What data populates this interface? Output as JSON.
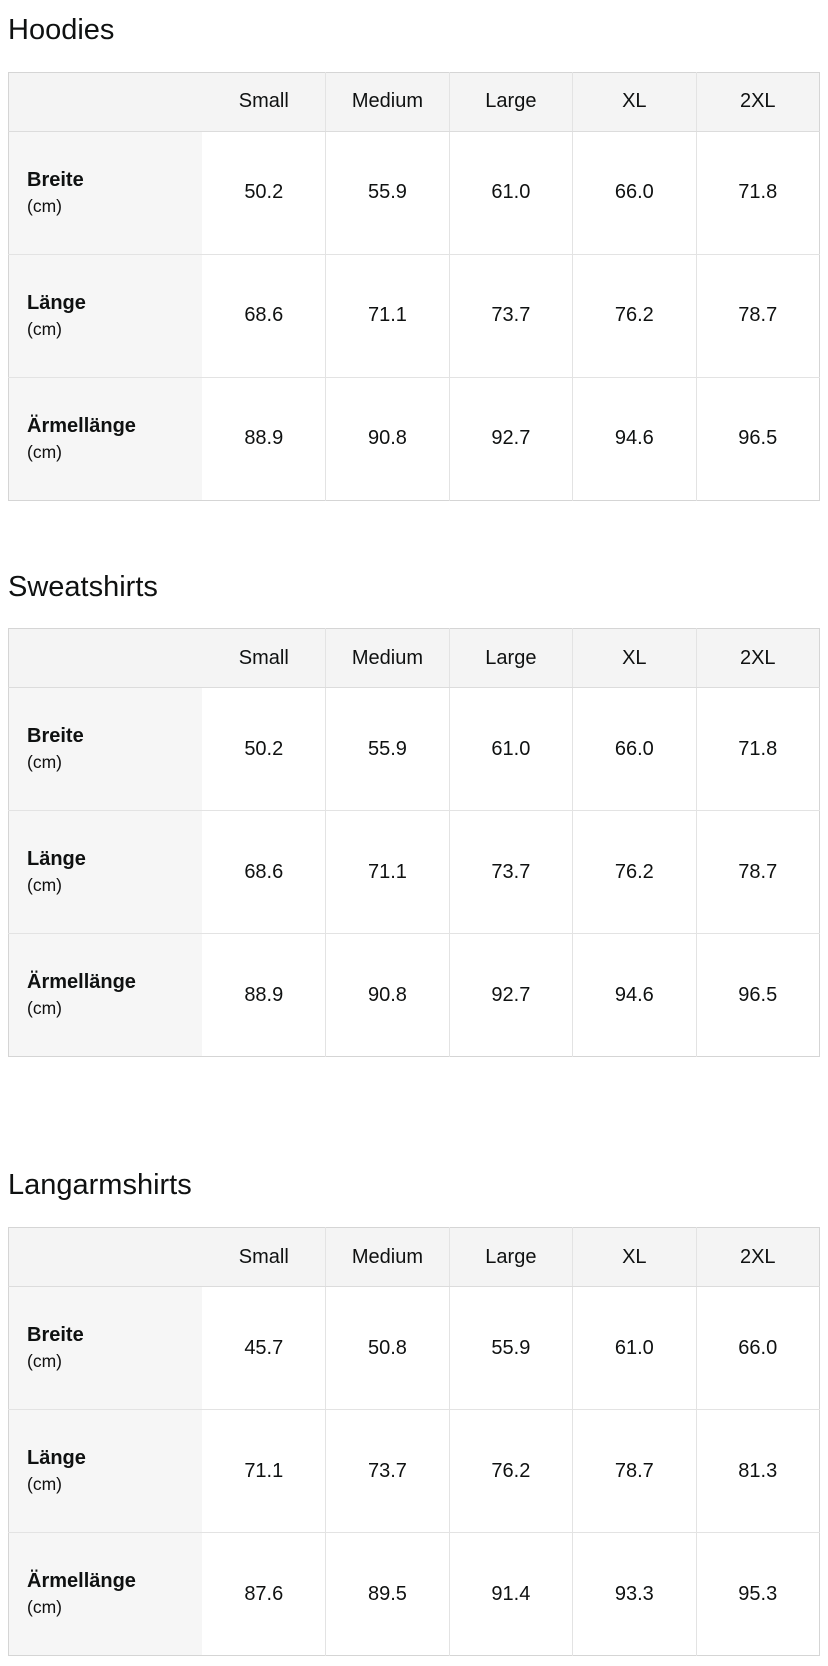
{
  "colors": {
    "header_background": "#f4f4f4",
    "label_column_background": "#f6f6f6",
    "table_border": "#d5d5d5",
    "cell_border": "#e3e3e3",
    "text": "#0f1111"
  },
  "sections": [
    {
      "title": "Hoodies",
      "columns": [
        "Small",
        "Medium",
        "Large",
        "XL",
        "2XL"
      ],
      "rows": [
        {
          "label": "Breite",
          "unit": "(cm)",
          "values": [
            "50.2",
            "55.9",
            "61.0",
            "66.0",
            "71.8"
          ]
        },
        {
          "label": "Länge",
          "unit": "(cm)",
          "values": [
            "68.6",
            "71.1",
            "73.7",
            "76.2",
            "78.7"
          ]
        },
        {
          "label": "Ärmellänge",
          "unit": "(cm)",
          "values": [
            "88.9",
            "90.8",
            "92.7",
            "94.6",
            "96.5"
          ]
        }
      ]
    },
    {
      "title": "Sweatshirts",
      "columns": [
        "Small",
        "Medium",
        "Large",
        "XL",
        "2XL"
      ],
      "rows": [
        {
          "label": "Breite",
          "unit": "(cm)",
          "values": [
            "50.2",
            "55.9",
            "61.0",
            "66.0",
            "71.8"
          ]
        },
        {
          "label": "Länge",
          "unit": "(cm)",
          "values": [
            "68.6",
            "71.1",
            "73.7",
            "76.2",
            "78.7"
          ]
        },
        {
          "label": "Ärmellänge",
          "unit": "(cm)",
          "values": [
            "88.9",
            "90.8",
            "92.7",
            "94.6",
            "96.5"
          ]
        }
      ]
    },
    {
      "title": "Langarmshirts",
      "columns": [
        "Small",
        "Medium",
        "Large",
        "XL",
        "2XL"
      ],
      "rows": [
        {
          "label": "Breite",
          "unit": "(cm)",
          "values": [
            "45.7",
            "50.8",
            "55.9",
            "61.0",
            "66.0"
          ]
        },
        {
          "label": "Länge",
          "unit": "(cm)",
          "values": [
            "71.1",
            "73.7",
            "76.2",
            "78.7",
            "81.3"
          ]
        },
        {
          "label": "Ärmellänge",
          "unit": "(cm)",
          "values": [
            "87.6",
            "89.5",
            "91.4",
            "93.3",
            "95.3"
          ]
        }
      ]
    }
  ]
}
